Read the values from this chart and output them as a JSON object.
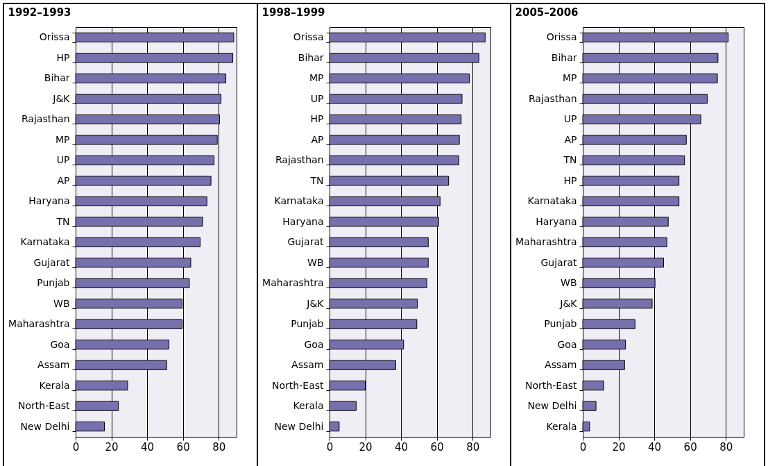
{
  "chart_data": [
    {
      "type": "bar",
      "orientation": "horizontal",
      "title": "1992–1993",
      "categories": [
        "Orissa",
        "HP",
        "Bihar",
        "J&K",
        "Rajasthan",
        "MP",
        "UP",
        "AP",
        "Haryana",
        "TN",
        "Karnataka",
        "Gujarat",
        "Punjab",
        "WB",
        "Maharashtra",
        "Goa",
        "Assam",
        "Kerala",
        "North-East",
        "New Delhi"
      ],
      "values": [
        88.4,
        87.9,
        84,
        81.3,
        80.5,
        79.2,
        77.4,
        75.7,
        73.4,
        71,
        69.6,
        64.4,
        63.6,
        59.6,
        59.6,
        52.2,
        50.9,
        29.1,
        23.9,
        16.1
      ],
      "color": "#7670ad",
      "xlim": [
        0,
        90
      ],
      "xticks": [
        0,
        20,
        40,
        60,
        80
      ],
      "grid": "x"
    },
    {
      "type": "bar",
      "orientation": "horizontal",
      "title": "1998–1999",
      "categories": [
        "Orissa",
        "Bihar",
        "MP",
        "UP",
        "HP",
        "AP",
        "Rajasthan",
        "TN",
        "Karnataka",
        "Haryana",
        "Gujarat",
        "WB",
        "Maharashtra",
        "J&K",
        "Punjab",
        "Goa",
        "Assam",
        "North-East",
        "Kerala",
        "New Delhi"
      ],
      "values": [
        87,
        83.5,
        78.2,
        74.1,
        73.6,
        72.6,
        72.3,
        66.6,
        61.8,
        61,
        55.2,
        55.2,
        54.4,
        49.1,
        48.8,
        41.4,
        37,
        20,
        14.9,
        5.4
      ],
      "color": "#7670ad",
      "xlim": [
        0,
        90
      ],
      "xticks": [
        0,
        20,
        40,
        60,
        80
      ],
      "grid": "x"
    },
    {
      "type": "bar",
      "orientation": "horizontal",
      "title": "2005–2006",
      "categories": [
        "Orissa",
        "Bihar",
        "MP",
        "Rajasthan",
        "UP",
        "AP",
        "TN",
        "HP",
        "Karnataka",
        "Haryana",
        "Maharashtra",
        "Gujarat",
        "WB",
        "J&K",
        "Punjab",
        "Goa",
        "Assam",
        "North-East",
        "New Delhi",
        "Kerala"
      ],
      "values": [
        81.3,
        75.6,
        75.3,
        69.6,
        66,
        57.9,
        56.9,
        53.8,
        53.8,
        47.8,
        47,
        45.2,
        40.4,
        38.8,
        29.2,
        23.9,
        23.4,
        11.7,
        7.4,
        3.8
      ],
      "color": "#7670ad",
      "xlim": [
        0,
        90
      ],
      "xticks": [
        0,
        20,
        40,
        60,
        80
      ],
      "grid": "x"
    }
  ]
}
